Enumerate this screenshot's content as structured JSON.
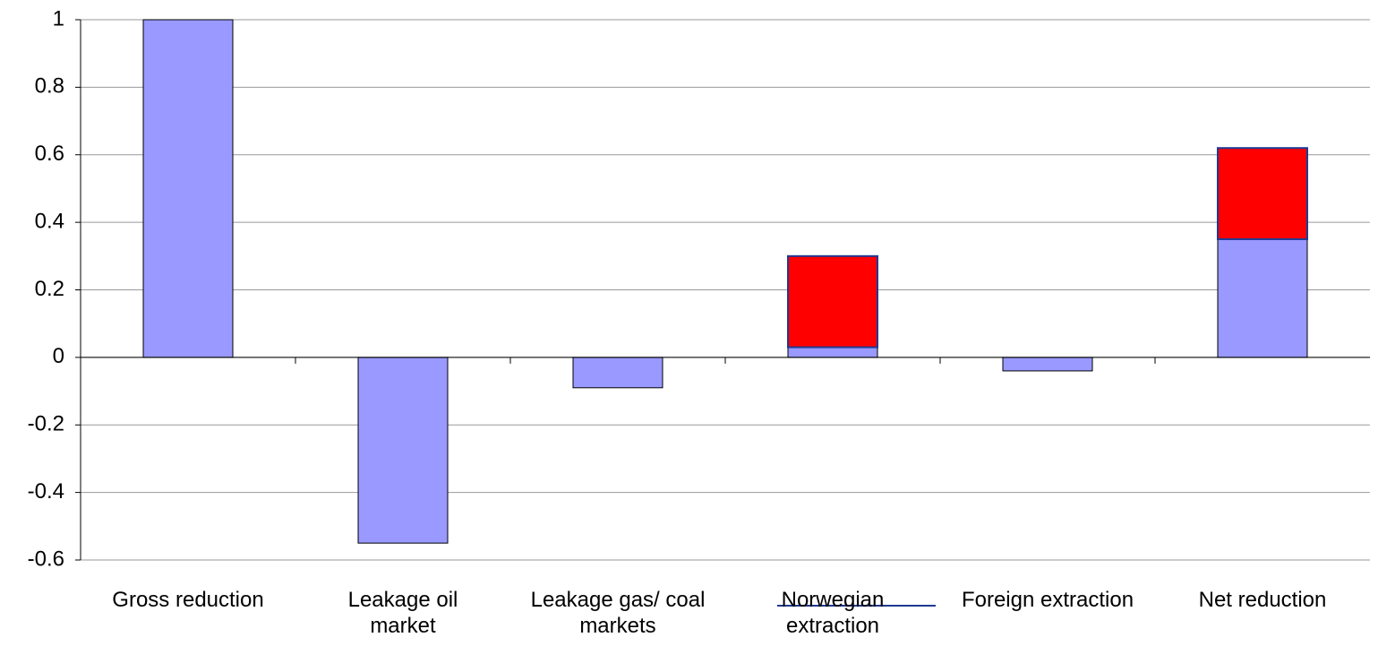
{
  "chart_data": {
    "type": "stacked_bar",
    "categories": [
      "Gross reduction",
      "Leakage oil market",
      "Leakage gas/ coal markets",
      "Norwegian extraction",
      "Foreign extraction",
      "Net reduction"
    ],
    "series": [
      {
        "color": "#9999ff",
        "values": [
          1,
          -0.55,
          -0.09,
          0.03,
          -0.04,
          0.35
        ]
      },
      {
        "color": "#ff0000",
        "values": [
          null,
          null,
          null,
          0.27,
          null,
          0.27
        ]
      }
    ],
    "ylim": [
      -0.6,
      1
    ],
    "yticks": [
      -0.6,
      -0.4,
      -0.2,
      0,
      0.2,
      0.4,
      0.6,
      0.8,
      1
    ],
    "grid": true
  }
}
